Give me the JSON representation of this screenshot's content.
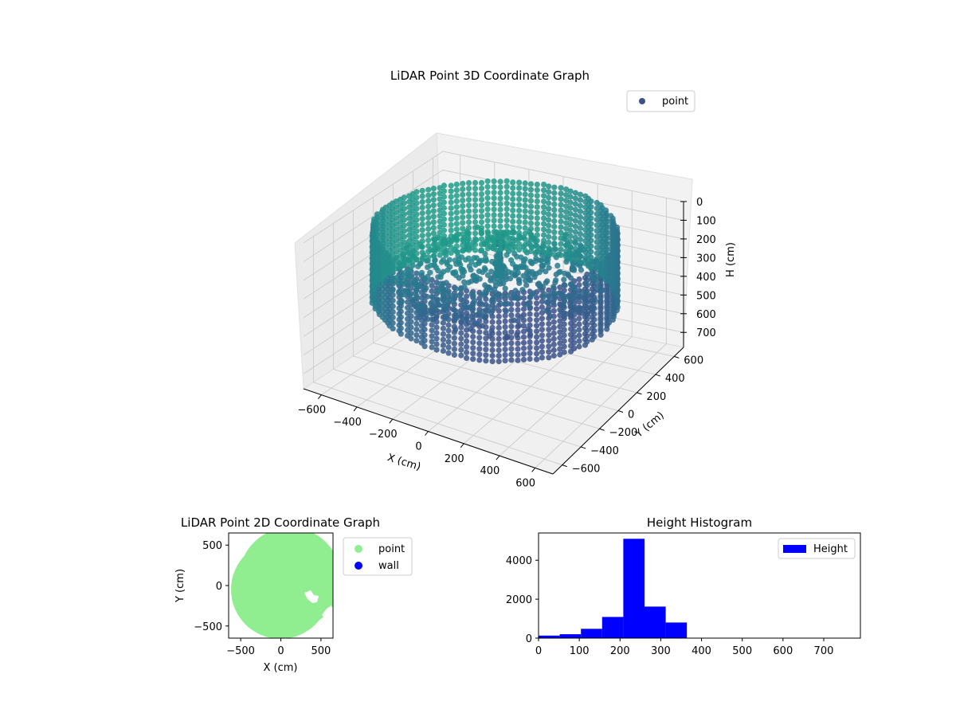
{
  "chart_data": [
    {
      "type": "scatter3d",
      "title": "LiDAR Point 3D Coordinate Graph",
      "xlabel": "X (cm)",
      "ylabel": "Y (cm)",
      "zlabel": "H (cm)",
      "xlim": [
        -700,
        700
      ],
      "ylim": [
        -700,
        700
      ],
      "zlim": [
        0,
        780
      ],
      "z_inverted": true,
      "x_ticks": [
        -600,
        -400,
        -200,
        0,
        200,
        400,
        600
      ],
      "y_ticks": [
        -600,
        -400,
        -200,
        0,
        200,
        400,
        600
      ],
      "z_ticks": [
        0,
        100,
        200,
        300,
        400,
        500,
        600,
        700
      ],
      "legend": [
        "point"
      ],
      "legend_position": "top-right",
      "colormap": "viridis",
      "grid": true,
      "description": "Ring-shaped wall of points (radius ~600 cm) at heights 0–400 cm with a floor sheet near 250 cm"
    },
    {
      "type": "scatter",
      "title": "LiDAR Point 2D Coordinate Graph",
      "xlabel": "X (cm)",
      "ylabel": "Y (cm)",
      "xlim": [
        -650,
        650
      ],
      "ylim": [
        -650,
        650
      ],
      "x_ticks": [
        -500,
        0,
        500
      ],
      "y_ticks": [
        -500,
        0,
        500
      ],
      "legend": [
        "point",
        "wall"
      ],
      "legend_position": "outside right",
      "series": [
        {
          "name": "point",
          "color": "#90ee90"
        },
        {
          "name": "wall",
          "color": "#0000ff"
        }
      ]
    },
    {
      "type": "bar",
      "title": "Height Histogram",
      "xlim": [
        0,
        790
      ],
      "ylim": [
        0,
        5400
      ],
      "x_ticks": [
        0,
        100,
        200,
        300,
        400,
        500,
        600,
        700
      ],
      "y_ticks": [
        0,
        2000,
        4000
      ],
      "legend": [
        "Height"
      ],
      "legend_position": "top-right",
      "bin_width": 52,
      "bins_start": [
        0,
        52,
        104,
        156,
        208,
        260,
        312,
        364,
        416,
        468,
        520,
        572,
        624,
        676,
        728
      ],
      "values": [
        130,
        200,
        480,
        1090,
        5100,
        1620,
        800,
        0,
        0,
        0,
        0,
        0,
        0,
        0,
        0
      ],
      "color": "#0000ff"
    }
  ]
}
